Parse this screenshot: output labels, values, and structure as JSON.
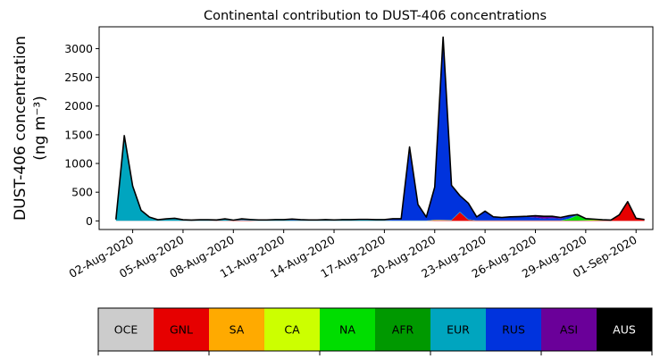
{
  "chart_data": {
    "type": "area",
    "stacked": true,
    "title": "Continental contribution to DUST-406 concentrations",
    "ylabel_line1": "DUST-406 concentration",
    "ylabel_line2": "(ng m⁻³)",
    "ylim": [
      -150,
      3380
    ],
    "yticks": [
      0,
      500,
      1000,
      1500,
      2000,
      2500,
      3000
    ],
    "xlim": [
      "2020-07-31",
      "2020-09-02"
    ],
    "xticks": [
      "02-Aug-2020",
      "05-Aug-2020",
      "08-Aug-2020",
      "11-Aug-2020",
      "14-Aug-2020",
      "17-Aug-2020",
      "20-Aug-2020",
      "23-Aug-2020",
      "26-Aug-2020",
      "29-Aug-2020",
      "01-Sep-2020"
    ],
    "grid": false,
    "x": [
      "2020-08-01",
      "2020-08-01 12:00",
      "2020-08-02",
      "2020-08-02 12:00",
      "2020-08-03",
      "2020-08-03 12:00",
      "2020-08-04",
      "2020-08-04 12:00",
      "2020-08-05",
      "2020-08-05 12:00",
      "2020-08-06",
      "2020-08-06 12:00",
      "2020-08-07",
      "2020-08-07 12:00",
      "2020-08-08",
      "2020-08-08 12:00",
      "2020-08-09",
      "2020-08-09 12:00",
      "2020-08-10",
      "2020-08-10 12:00",
      "2020-08-11",
      "2020-08-11 12:00",
      "2020-08-12",
      "2020-08-12 12:00",
      "2020-08-13",
      "2020-08-13 12:00",
      "2020-08-14",
      "2020-08-14 12:00",
      "2020-08-15",
      "2020-08-15 12:00",
      "2020-08-16",
      "2020-08-16 12:00",
      "2020-08-17",
      "2020-08-17 12:00",
      "2020-08-18",
      "2020-08-18 12:00",
      "2020-08-19",
      "2020-08-19 12:00",
      "2020-08-20",
      "2020-08-20 12:00",
      "2020-08-21",
      "2020-08-21 12:00",
      "2020-08-22",
      "2020-08-22 12:00",
      "2020-08-23",
      "2020-08-23 12:00",
      "2020-08-24",
      "2020-08-24 12:00",
      "2020-08-25",
      "2020-08-25 12:00",
      "2020-08-26",
      "2020-08-26 12:00",
      "2020-08-27",
      "2020-08-27 12:00",
      "2020-08-28",
      "2020-08-28 12:00",
      "2020-08-29",
      "2020-08-29 12:00",
      "2020-08-30",
      "2020-08-30 12:00",
      "2020-08-31",
      "2020-08-31 12:00",
      "2020-09-01",
      "2020-09-01 12:00"
    ],
    "series": [
      {
        "name": "OCE",
        "color": "#cccccc",
        "values": [
          0,
          0,
          0,
          0,
          0,
          0,
          0,
          0,
          0,
          0,
          0,
          0,
          0,
          0,
          0,
          0,
          0,
          0,
          0,
          0,
          0,
          0,
          0,
          0,
          0,
          0,
          0,
          0,
          0,
          0,
          0,
          0,
          0,
          0,
          0,
          0,
          0,
          0,
          0,
          0,
          0,
          0,
          0,
          0,
          0,
          0,
          0,
          0,
          0,
          0,
          0,
          0,
          0,
          0,
          0,
          0,
          0,
          0,
          0,
          0,
          0,
          0,
          0,
          0
        ]
      },
      {
        "name": "GNL",
        "color": "#e60000",
        "values": [
          2,
          2,
          2,
          2,
          2,
          2,
          2,
          2,
          2,
          2,
          2,
          2,
          3,
          3,
          5,
          10,
          5,
          2,
          2,
          2,
          2,
          2,
          2,
          2,
          2,
          2,
          2,
          2,
          2,
          2,
          2,
          2,
          2,
          2,
          2,
          2,
          2,
          2,
          5,
          10,
          10,
          150,
          20,
          5,
          5,
          5,
          5,
          5,
          5,
          5,
          5,
          5,
          5,
          5,
          5,
          5,
          5,
          5,
          5,
          5,
          100,
          330,
          40,
          20
        ]
      },
      {
        "name": "SA",
        "color": "#ffaa00",
        "values": [
          0,
          0,
          0,
          0,
          0,
          0,
          0,
          0,
          0,
          0,
          0,
          0,
          0,
          0,
          0,
          0,
          0,
          0,
          0,
          0,
          0,
          0,
          0,
          0,
          0,
          0,
          0,
          0,
          0,
          0,
          0,
          0,
          0,
          0,
          0,
          0,
          0,
          0,
          10,
          5,
          0,
          0,
          0,
          0,
          0,
          0,
          0,
          0,
          0,
          0,
          0,
          0,
          0,
          0,
          0,
          0,
          0,
          0,
          0,
          0,
          0,
          0,
          0,
          0
        ]
      },
      {
        "name": "CA",
        "color": "#ccff00",
        "values": [
          0,
          0,
          0,
          0,
          0,
          0,
          0,
          0,
          0,
          0,
          0,
          0,
          0,
          0,
          0,
          0,
          0,
          0,
          0,
          0,
          0,
          0,
          0,
          0,
          0,
          0,
          0,
          0,
          0,
          0,
          0,
          0,
          0,
          0,
          0,
          0,
          0,
          0,
          0,
          0,
          0,
          0,
          0,
          0,
          0,
          0,
          0,
          0,
          0,
          0,
          0,
          0,
          0,
          0,
          0,
          0,
          5,
          10,
          5,
          0,
          0,
          0,
          0,
          0
        ]
      },
      {
        "name": "NA",
        "color": "#00dd00",
        "values": [
          0,
          0,
          0,
          0,
          0,
          0,
          0,
          0,
          0,
          0,
          0,
          0,
          0,
          0,
          0,
          0,
          0,
          0,
          0,
          0,
          0,
          0,
          0,
          0,
          0,
          0,
          0,
          0,
          0,
          0,
          0,
          0,
          0,
          0,
          0,
          0,
          0,
          0,
          0,
          0,
          0,
          0,
          0,
          0,
          0,
          0,
          0,
          0,
          0,
          0,
          0,
          0,
          0,
          0,
          30,
          80,
          20,
          10,
          5,
          5,
          0,
          0,
          0,
          0
        ]
      },
      {
        "name": "AFR",
        "color": "#009900",
        "values": [
          0,
          0,
          0,
          0,
          0,
          0,
          0,
          0,
          0,
          0,
          0,
          0,
          0,
          0,
          0,
          0,
          0,
          0,
          0,
          0,
          0,
          0,
          0,
          0,
          0,
          0,
          0,
          0,
          0,
          0,
          0,
          0,
          0,
          0,
          0,
          0,
          0,
          0,
          0,
          0,
          0,
          0,
          0,
          0,
          0,
          0,
          0,
          0,
          0,
          0,
          0,
          0,
          0,
          0,
          0,
          10,
          5,
          0,
          0,
          0,
          0,
          0,
          0,
          0
        ]
      },
      {
        "name": "EUR",
        "color": "#00a5bf",
        "values": [
          20,
          1480,
          600,
          180,
          60,
          15,
          30,
          40,
          15,
          10,
          15,
          15,
          10,
          30,
          5,
          10,
          10,
          10,
          10,
          15,
          15,
          10,
          10,
          10,
          10,
          15,
          10,
          15,
          15,
          20,
          20,
          15,
          10,
          5,
          5,
          5,
          5,
          5,
          5,
          5,
          10,
          10,
          10,
          5,
          5,
          5,
          5,
          5,
          5,
          5,
          5,
          5,
          5,
          5,
          5,
          10,
          5,
          5,
          5,
          5,
          5,
          5,
          5,
          5
        ]
      },
      {
        "name": "RUS",
        "color": "#0033dd",
        "values": [
          3,
          3,
          3,
          3,
          3,
          3,
          3,
          3,
          3,
          3,
          3,
          3,
          3,
          3,
          3,
          15,
          10,
          5,
          5,
          5,
          5,
          20,
          10,
          5,
          5,
          5,
          5,
          5,
          5,
          5,
          5,
          5,
          10,
          30,
          30,
          1280,
          280,
          60,
          570,
          3180,
          600,
          280,
          280,
          60,
          160,
          60,
          50,
          60,
          60,
          60,
          50,
          30,
          40,
          30,
          40,
          0,
          0,
          0,
          0,
          0,
          0,
          0,
          0,
          0
        ]
      },
      {
        "name": "ASI",
        "color": "#6a0099",
        "values": [
          0,
          0,
          0,
          0,
          0,
          0,
          0,
          0,
          0,
          0,
          0,
          0,
          0,
          0,
          0,
          0,
          0,
          0,
          0,
          0,
          0,
          0,
          0,
          0,
          0,
          0,
          0,
          0,
          0,
          0,
          0,
          0,
          0,
          0,
          0,
          0,
          0,
          0,
          0,
          0,
          0,
          0,
          0,
          0,
          0,
          0,
          0,
          0,
          5,
          10,
          30,
          40,
          30,
          20,
          10,
          5,
          0,
          0,
          0,
          0,
          0,
          0,
          0,
          0
        ]
      },
      {
        "name": "AUS",
        "color": "#000000",
        "values": [
          0,
          0,
          0,
          0,
          0,
          0,
          0,
          0,
          0,
          0,
          0,
          0,
          0,
          0,
          0,
          0,
          0,
          0,
          0,
          0,
          0,
          0,
          0,
          0,
          0,
          0,
          0,
          0,
          0,
          0,
          0,
          0,
          0,
          0,
          0,
          0,
          0,
          0,
          0,
          0,
          0,
          0,
          0,
          0,
          0,
          0,
          0,
          0,
          0,
          0,
          0,
          0,
          0,
          0,
          0,
          0,
          0,
          0,
          0,
          0,
          0,
          0,
          0,
          0
        ]
      }
    ],
    "legend_placement": "bottom",
    "legend": [
      {
        "label": "OCE",
        "color": "#cccccc",
        "text_color": "#000000"
      },
      {
        "label": "GNL",
        "color": "#e60000",
        "text_color": "#000000"
      },
      {
        "label": "SA",
        "color": "#ffaa00",
        "text_color": "#000000"
      },
      {
        "label": "CA",
        "color": "#ccff00",
        "text_color": "#000000"
      },
      {
        "label": "NA",
        "color": "#00dd00",
        "text_color": "#000000"
      },
      {
        "label": "AFR",
        "color": "#009900",
        "text_color": "#000000"
      },
      {
        "label": "EUR",
        "color": "#00a5bf",
        "text_color": "#000000"
      },
      {
        "label": "RUS",
        "color": "#0033dd",
        "text_color": "#000000"
      },
      {
        "label": "ASI",
        "color": "#6a0099",
        "text_color": "#000000"
      },
      {
        "label": "AUS",
        "color": "#000000",
        "text_color": "#ffffff"
      }
    ]
  }
}
